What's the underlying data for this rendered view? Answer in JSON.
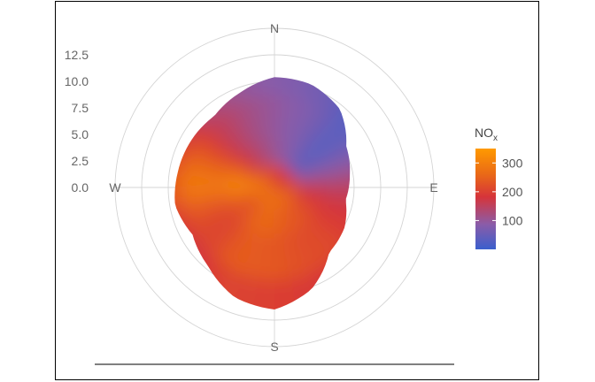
{
  "chart_data": {
    "type": "polar-heatmap",
    "title": "",
    "r_ticks": [
      "0.0",
      "2.5",
      "5.0",
      "7.5",
      "10.0",
      "12.5"
    ],
    "r_max": 15,
    "directions": [
      {
        "label": "N",
        "angle_deg": 0
      },
      {
        "label": "E",
        "angle_deg": 90
      },
      {
        "label": "S",
        "angle_deg": 180
      },
      {
        "label": "W",
        "angle_deg": 270
      }
    ],
    "legend": {
      "title": "NO",
      "title_subscript": "x",
      "ticks": [
        100,
        200,
        300
      ],
      "ticks_text": [
        "100",
        "200",
        "300"
      ],
      "range": [
        0,
        350
      ],
      "colors": [
        "#3a5fcd",
        "#8b5ca8",
        "#d6343a",
        "#ea6a16",
        "#ff9a00"
      ],
      "placement": "right"
    },
    "extent_radius": [
      [
        0,
        10.4
      ],
      [
        20,
        10.3
      ],
      [
        40,
        9.6
      ],
      [
        60,
        7.8
      ],
      [
        80,
        7.2
      ],
      [
        100,
        6.8
      ],
      [
        120,
        7.6
      ],
      [
        140,
        8.0
      ],
      [
        160,
        10.2
      ],
      [
        180,
        11.5
      ],
      [
        200,
        11.0
      ],
      [
        220,
        9.7
      ],
      [
        240,
        8.9
      ],
      [
        260,
        9.5
      ],
      [
        280,
        9.2
      ],
      [
        300,
        9.0
      ],
      [
        320,
        8.8
      ],
      [
        340,
        9.5
      ]
    ],
    "concentration_by_direction": [
      [
        0,
        100
      ],
      [
        30,
        70
      ],
      [
        50,
        30
      ],
      [
        70,
        80
      ],
      [
        90,
        150
      ],
      [
        110,
        180
      ],
      [
        135,
        210
      ],
      [
        160,
        220
      ],
      [
        185,
        235
      ],
      [
        210,
        240
      ],
      [
        230,
        200
      ],
      [
        250,
        220
      ],
      [
        270,
        295
      ],
      [
        290,
        250
      ],
      [
        315,
        160
      ],
      [
        340,
        120
      ]
    ],
    "axis_line": "bottom"
  }
}
